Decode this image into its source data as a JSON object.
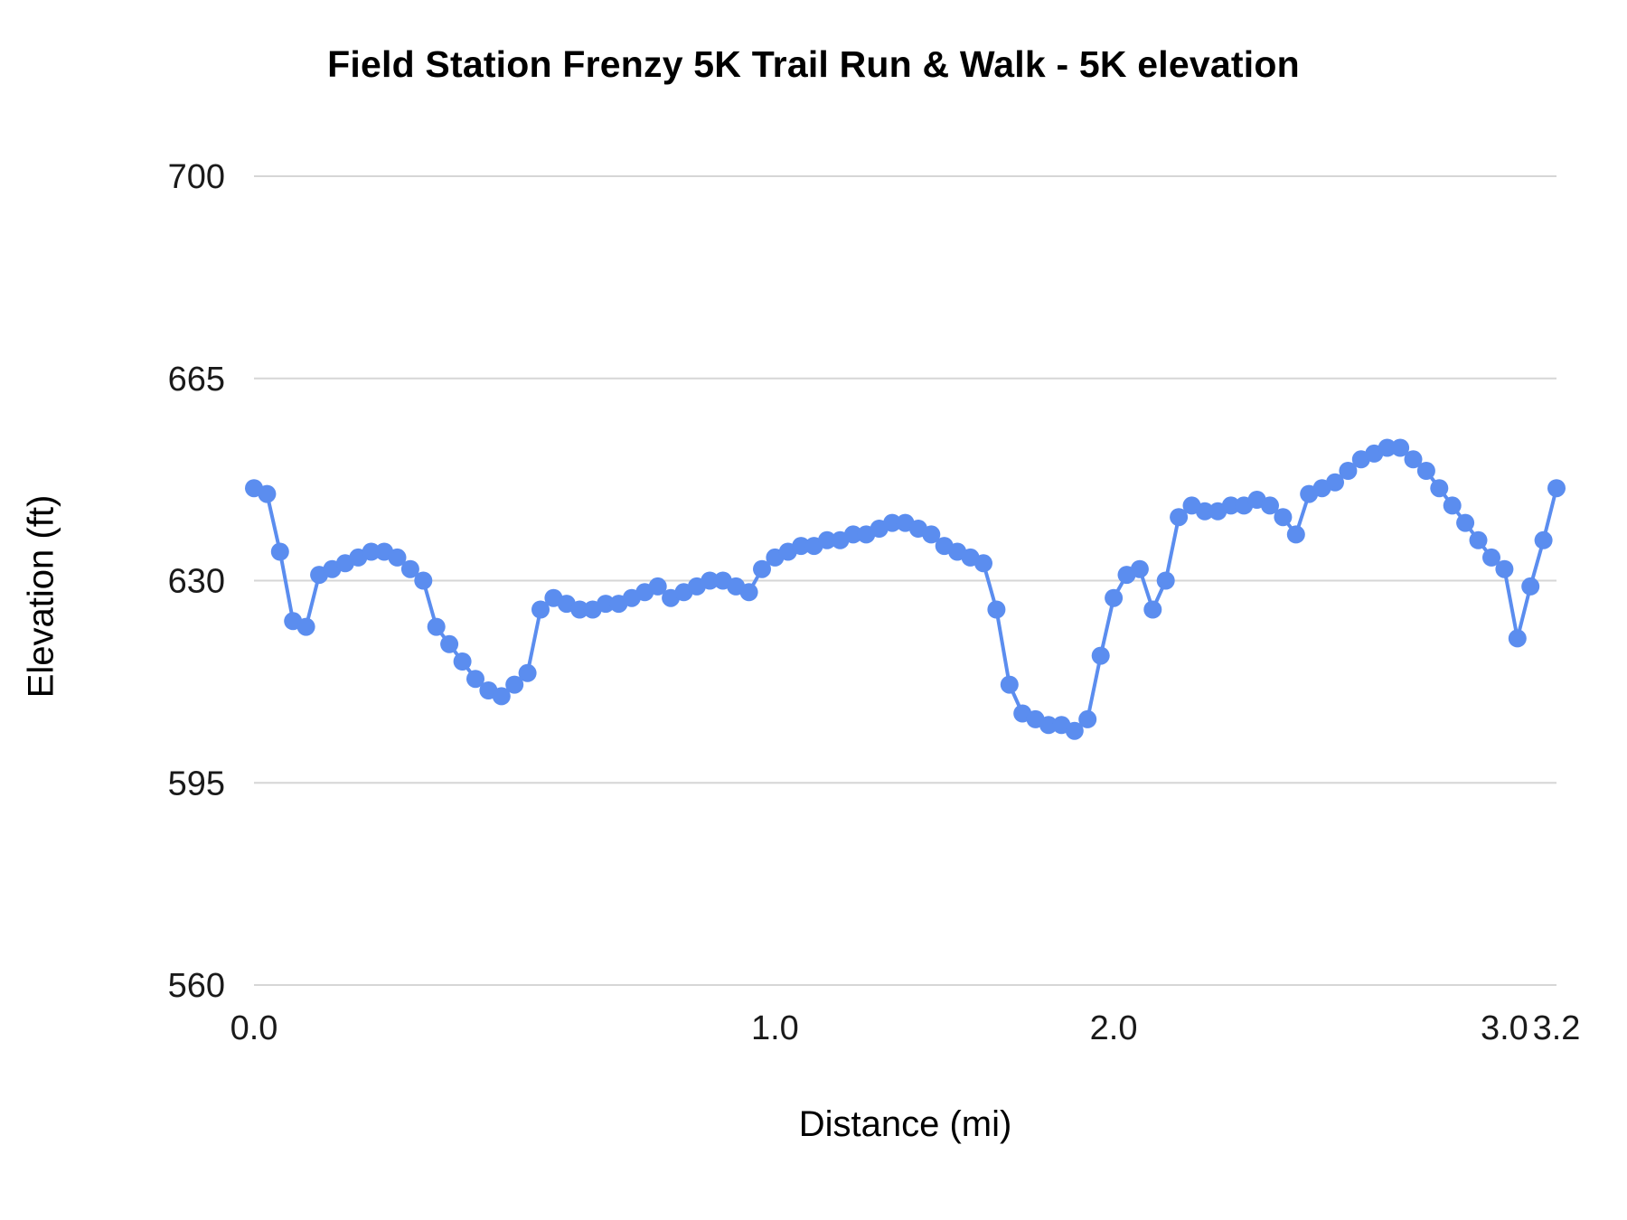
{
  "chart": {
    "title": "Field Station Frenzy 5K Trail Run & Walk - 5K elevation",
    "x_axis_title": "Distance (mi)",
    "y_axis_title": "Elevation (ft)"
  },
  "colors": {
    "background": "#ffffff",
    "gridline": "#d6d6d6",
    "text": "#1a1a1a",
    "series": "#5b8def"
  },
  "chart_data": {
    "type": "line",
    "title": "Field Station Frenzy 5K Trail Run & Walk - 5K elevation",
    "xlabel": "Distance (mi)",
    "ylabel": "Elevation (ft)",
    "ylim": [
      560,
      700
    ],
    "y_ticks": [
      "560",
      "595",
      "630",
      "665",
      "700"
    ],
    "y_tick_values": [
      560,
      595,
      630,
      665,
      700
    ],
    "x_ticks": [
      {
        "label": "0.0",
        "index": 0
      },
      {
        "label": "1.0",
        "index": 40
      },
      {
        "label": "2.0",
        "index": 66
      },
      {
        "label": "3.0",
        "index": 96
      },
      {
        "label": "3.2",
        "index": 100
      }
    ],
    "grid": true,
    "legend": "none",
    "marker": "circle",
    "series": [
      {
        "name": "5K elevation",
        "color": "#5b8def",
        "elevations_ft": [
          646,
          645,
          635,
          623,
          622,
          631,
          632,
          633,
          634,
          635,
          635,
          634,
          632,
          630,
          622,
          619,
          616,
          613,
          611,
          610,
          612,
          614,
          625,
          627,
          626,
          625,
          625,
          626,
          626,
          627,
          628,
          629,
          627,
          628,
          629,
          630,
          630,
          629,
          628,
          632,
          634,
          635,
          636,
          636,
          637,
          637,
          638,
          638,
          639,
          640,
          640,
          639,
          638,
          636,
          635,
          634,
          633,
          625,
          612,
          607,
          606,
          605,
          605,
          604,
          606,
          617,
          627,
          631,
          632,
          625,
          630,
          641,
          643,
          642,
          642,
          643,
          643,
          644,
          643,
          641,
          638,
          645,
          646,
          647,
          649,
          651,
          652,
          653,
          653,
          651,
          649,
          646,
          643,
          640,
          637,
          634,
          632,
          620,
          629,
          637,
          646
        ]
      }
    ]
  }
}
